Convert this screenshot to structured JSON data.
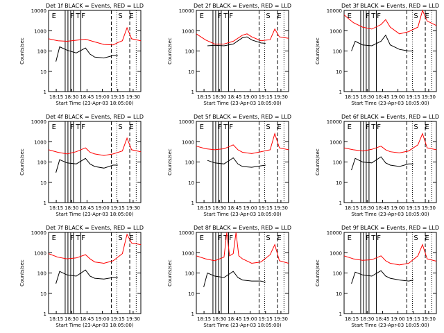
{
  "colors": {
    "events": "#000000",
    "lld": "#ff0000",
    "axis": "#000000"
  },
  "common": {
    "ylabel": "Counts/sec",
    "xlabel": "Start Time (23-Apr-03 18:05:00)",
    "x_ticks": [
      "18:15",
      "18:30",
      "18:45",
      "19:00",
      "19:15",
      "19:30"
    ],
    "y_ticks": [
      "1",
      "10",
      "100",
      "1000",
      "10000"
    ]
  },
  "chart_data": [
    {
      "type": "line",
      "panel": 1,
      "title": "Det 1f BLACK = Events, RED = LLD",
      "yscale": "log",
      "ylim": [
        1,
        10000
      ],
      "markers": [
        "E",
        "F",
        "T",
        "F",
        "S",
        "E"
      ],
      "series": [
        {
          "color": "#ff0000",
          "values": [
            [
              0.0,
              400
            ],
            [
              0.1,
              320
            ],
            [
              0.2,
              300
            ],
            [
              0.3,
              340
            ],
            [
              0.4,
              380
            ],
            [
              0.5,
              280
            ],
            [
              0.6,
              210
            ],
            [
              0.7,
              200
            ],
            [
              0.75,
              260
            ],
            [
              0.8,
              320
            ],
            [
              0.85,
              1400
            ],
            [
              0.9,
              400
            ],
            [
              1.0,
              320
            ]
          ]
        },
        {
          "color": "#000000",
          "values": [
            [
              0.08,
              30
            ],
            [
              0.12,
              160
            ],
            [
              0.2,
              110
            ],
            [
              0.3,
              80
            ],
            [
              0.4,
              140
            ],
            [
              0.45,
              70
            ],
            [
              0.5,
              50
            ],
            [
              0.6,
              45
            ],
            [
              0.7,
              60
            ],
            [
              0.75,
              60
            ]
          ]
        }
      ]
    },
    {
      "type": "line",
      "panel": 2,
      "title": "Det 2f BLACK = Events, RED = LLD",
      "yscale": "log",
      "ylim": [
        1,
        10000
      ],
      "markers": [
        "E",
        "F",
        "T",
        "F",
        "S",
        "E"
      ],
      "series": [
        {
          "color": "#ff0000",
          "values": [
            [
              0.0,
              700
            ],
            [
              0.1,
              350
            ],
            [
              0.2,
              220
            ],
            [
              0.3,
              220
            ],
            [
              0.4,
              300
            ],
            [
              0.5,
              600
            ],
            [
              0.55,
              700
            ],
            [
              0.6,
              500
            ],
            [
              0.7,
              320
            ],
            [
              0.8,
              360
            ],
            [
              0.85,
              1200
            ],
            [
              0.9,
              500
            ],
            [
              1.0,
              420
            ]
          ]
        },
        {
          "color": "#000000",
          "values": [
            [
              0.12,
              180
            ],
            [
              0.2,
              190
            ],
            [
              0.3,
              180
            ],
            [
              0.4,
              220
            ],
            [
              0.5,
              450
            ],
            [
              0.55,
              500
            ],
            [
              0.6,
              350
            ],
            [
              0.7,
              250
            ],
            [
              0.75,
              240
            ]
          ]
        }
      ]
    },
    {
      "type": "line",
      "panel": 3,
      "title": "Det 3f BLACK = Events, RED = LLD",
      "yscale": "log",
      "ylim": [
        1,
        10000
      ],
      "markers": [
        "E",
        "F",
        "T",
        "F",
        "S",
        "E"
      ],
      "series": [
        {
          "color": "#ff0000",
          "values": [
            [
              0.0,
              6000
            ],
            [
              0.1,
              2500
            ],
            [
              0.2,
              1500
            ],
            [
              0.3,
              1200
            ],
            [
              0.4,
              2000
            ],
            [
              0.45,
              3500
            ],
            [
              0.5,
              1500
            ],
            [
              0.6,
              700
            ],
            [
              0.7,
              900
            ],
            [
              0.8,
              1500
            ],
            [
              0.85,
              10000
            ],
            [
              0.9,
              3000
            ],
            [
              1.0,
              1800
            ]
          ]
        },
        {
          "color": "#000000",
          "values": [
            [
              0.08,
              100
            ],
            [
              0.12,
              300
            ],
            [
              0.2,
              200
            ],
            [
              0.3,
              180
            ],
            [
              0.4,
              300
            ],
            [
              0.45,
              600
            ],
            [
              0.5,
              200
            ],
            [
              0.6,
              120
            ],
            [
              0.7,
              100
            ],
            [
              0.75,
              100
            ]
          ]
        }
      ]
    },
    {
      "type": "line",
      "panel": 4,
      "title": "Det 4f BLACK = Events, RED = LLD",
      "yscale": "log",
      "ylim": [
        1,
        10000
      ],
      "markers": [
        "E",
        "F",
        "T",
        "F",
        "S",
        "E"
      ],
      "series": [
        {
          "color": "#ff0000",
          "values": [
            [
              0.0,
              400
            ],
            [
              0.1,
              300
            ],
            [
              0.2,
              250
            ],
            [
              0.3,
              320
            ],
            [
              0.4,
              500
            ],
            [
              0.45,
              300
            ],
            [
              0.5,
              250
            ],
            [
              0.6,
              210
            ],
            [
              0.7,
              250
            ],
            [
              0.8,
              350
            ],
            [
              0.85,
              1500
            ],
            [
              0.9,
              400
            ],
            [
              1.0,
              320
            ]
          ]
        },
        {
          "color": "#000000",
          "values": [
            [
              0.08,
              30
            ],
            [
              0.12,
              130
            ],
            [
              0.2,
              90
            ],
            [
              0.3,
              80
            ],
            [
              0.4,
              150
            ],
            [
              0.45,
              80
            ],
            [
              0.5,
              60
            ],
            [
              0.6,
              50
            ],
            [
              0.7,
              70
            ],
            [
              0.75,
              70
            ]
          ]
        }
      ]
    },
    {
      "type": "line",
      "panel": 5,
      "title": "Det 5f BLACK = Events, RED = LLD",
      "yscale": "log",
      "ylim": [
        1,
        10000
      ],
      "markers": [
        "E",
        "F",
        "T",
        "F",
        "S",
        "E"
      ],
      "series": [
        {
          "color": "#ff0000",
          "values": [
            [
              0.0,
              600
            ],
            [
              0.1,
              450
            ],
            [
              0.2,
              400
            ],
            [
              0.3,
              450
            ],
            [
              0.4,
              700
            ],
            [
              0.45,
              400
            ],
            [
              0.5,
              300
            ],
            [
              0.6,
              260
            ],
            [
              0.7,
              320
            ],
            [
              0.8,
              400
            ],
            [
              0.85,
              2500
            ],
            [
              0.9,
              500
            ],
            [
              1.0,
              400
            ]
          ]
        },
        {
          "color": "#000000",
          "values": [
            [
              0.12,
              120
            ],
            [
              0.2,
              90
            ],
            [
              0.3,
              80
            ],
            [
              0.4,
              160
            ],
            [
              0.45,
              80
            ],
            [
              0.5,
              60
            ],
            [
              0.6,
              55
            ],
            [
              0.7,
              65
            ],
            [
              0.75,
              70
            ]
          ]
        }
      ]
    },
    {
      "type": "line",
      "panel": 6,
      "title": "Det 6f BLACK = Events, RED = LLD",
      "yscale": "log",
      "ylim": [
        1,
        10000
      ],
      "markers": [
        "E",
        "F",
        "T",
        "F",
        "S",
        "E"
      ],
      "series": [
        {
          "color": "#ff0000",
          "values": [
            [
              0.0,
              500
            ],
            [
              0.1,
              400
            ],
            [
              0.2,
              350
            ],
            [
              0.3,
              420
            ],
            [
              0.4,
              600
            ],
            [
              0.45,
              400
            ],
            [
              0.5,
              320
            ],
            [
              0.6,
              280
            ],
            [
              0.7,
              350
            ],
            [
              0.8,
              700
            ],
            [
              0.85,
              2500
            ],
            [
              0.9,
              500
            ],
            [
              1.0,
              400
            ]
          ]
        },
        {
          "color": "#000000",
          "values": [
            [
              0.08,
              40
            ],
            [
              0.12,
              150
            ],
            [
              0.2,
              100
            ],
            [
              0.3,
              90
            ],
            [
              0.4,
              180
            ],
            [
              0.45,
              90
            ],
            [
              0.5,
              70
            ],
            [
              0.6,
              60
            ],
            [
              0.7,
              80
            ],
            [
              0.75,
              80
            ]
          ]
        }
      ]
    },
    {
      "type": "line",
      "panel": 7,
      "title": "Det 7f BLACK = Events, RED = LLD",
      "yscale": "log",
      "ylim": [
        1,
        10000
      ],
      "markers": [
        "E",
        "F",
        "T",
        "F",
        "S",
        "E"
      ],
      "series": [
        {
          "color": "#ff0000",
          "values": [
            [
              0.0,
              900
            ],
            [
              0.1,
              600
            ],
            [
              0.2,
              500
            ],
            [
              0.3,
              550
            ],
            [
              0.4,
              800
            ],
            [
              0.45,
              500
            ],
            [
              0.5,
              350
            ],
            [
              0.6,
              300
            ],
            [
              0.7,
              400
            ],
            [
              0.8,
              900
            ],
            [
              0.85,
              8000
            ],
            [
              0.9,
              3000
            ],
            [
              1.0,
              2500
            ]
          ]
        },
        {
          "color": "#000000",
          "values": [
            [
              0.08,
              30
            ],
            [
              0.12,
              120
            ],
            [
              0.2,
              80
            ],
            [
              0.3,
              70
            ],
            [
              0.4,
              140
            ],
            [
              0.45,
              70
            ],
            [
              0.5,
              55
            ],
            [
              0.6,
              50
            ],
            [
              0.7,
              60
            ],
            [
              0.75,
              60
            ]
          ]
        }
      ]
    },
    {
      "type": "line",
      "panel": 8,
      "title": "Det 8f BLACK = Events, RED = LLD",
      "yscale": "log",
      "ylim": [
        1,
        10000
      ],
      "markers": [
        "E",
        "F",
        "T",
        "F",
        "S",
        "E"
      ],
      "series": [
        {
          "color": "#ff0000",
          "values": [
            [
              0.0,
              700
            ],
            [
              0.1,
              500
            ],
            [
              0.2,
              400
            ],
            [
              0.3,
              600
            ],
            [
              0.33,
              10000
            ],
            [
              0.36,
              700
            ],
            [
              0.4,
              900
            ],
            [
              0.43,
              10000
            ],
            [
              0.46,
              700
            ],
            [
              0.5,
              500
            ],
            [
              0.6,
              300
            ],
            [
              0.7,
              350
            ],
            [
              0.8,
              800
            ],
            [
              0.85,
              2500
            ],
            [
              0.9,
              400
            ],
            [
              1.0,
              300
            ]
          ]
        },
        {
          "color": "#000000",
          "values": [
            [
              0.08,
              20
            ],
            [
              0.12,
              100
            ],
            [
              0.2,
              70
            ],
            [
              0.3,
              60
            ],
            [
              0.4,
              120
            ],
            [
              0.45,
              60
            ],
            [
              0.5,
              45
            ],
            [
              0.6,
              40
            ],
            [
              0.7,
              40
            ],
            [
              0.75,
              35
            ]
          ]
        }
      ]
    },
    {
      "type": "line",
      "panel": 9,
      "title": "Det 9f BLACK = Events, RED = LLD",
      "yscale": "log",
      "ylim": [
        1,
        10000
      ],
      "markers": [
        "E",
        "F",
        "T",
        "F",
        "S",
        "E"
      ],
      "series": [
        {
          "color": "#ff0000",
          "values": [
            [
              0.0,
              700
            ],
            [
              0.1,
              500
            ],
            [
              0.2,
              420
            ],
            [
              0.3,
              450
            ],
            [
              0.4,
              700
            ],
            [
              0.45,
              400
            ],
            [
              0.5,
              300
            ],
            [
              0.6,
              250
            ],
            [
              0.7,
              300
            ],
            [
              0.8,
              700
            ],
            [
              0.85,
              2500
            ],
            [
              0.9,
              500
            ],
            [
              1.0,
              380
            ]
          ]
        },
        {
          "color": "#000000",
          "values": [
            [
              0.08,
              30
            ],
            [
              0.12,
              110
            ],
            [
              0.2,
              80
            ],
            [
              0.3,
              70
            ],
            [
              0.4,
              130
            ],
            [
              0.45,
              70
            ],
            [
              0.5,
              55
            ],
            [
              0.6,
              45
            ],
            [
              0.7,
              40
            ],
            [
              0.75,
              45
            ]
          ]
        }
      ]
    }
  ]
}
